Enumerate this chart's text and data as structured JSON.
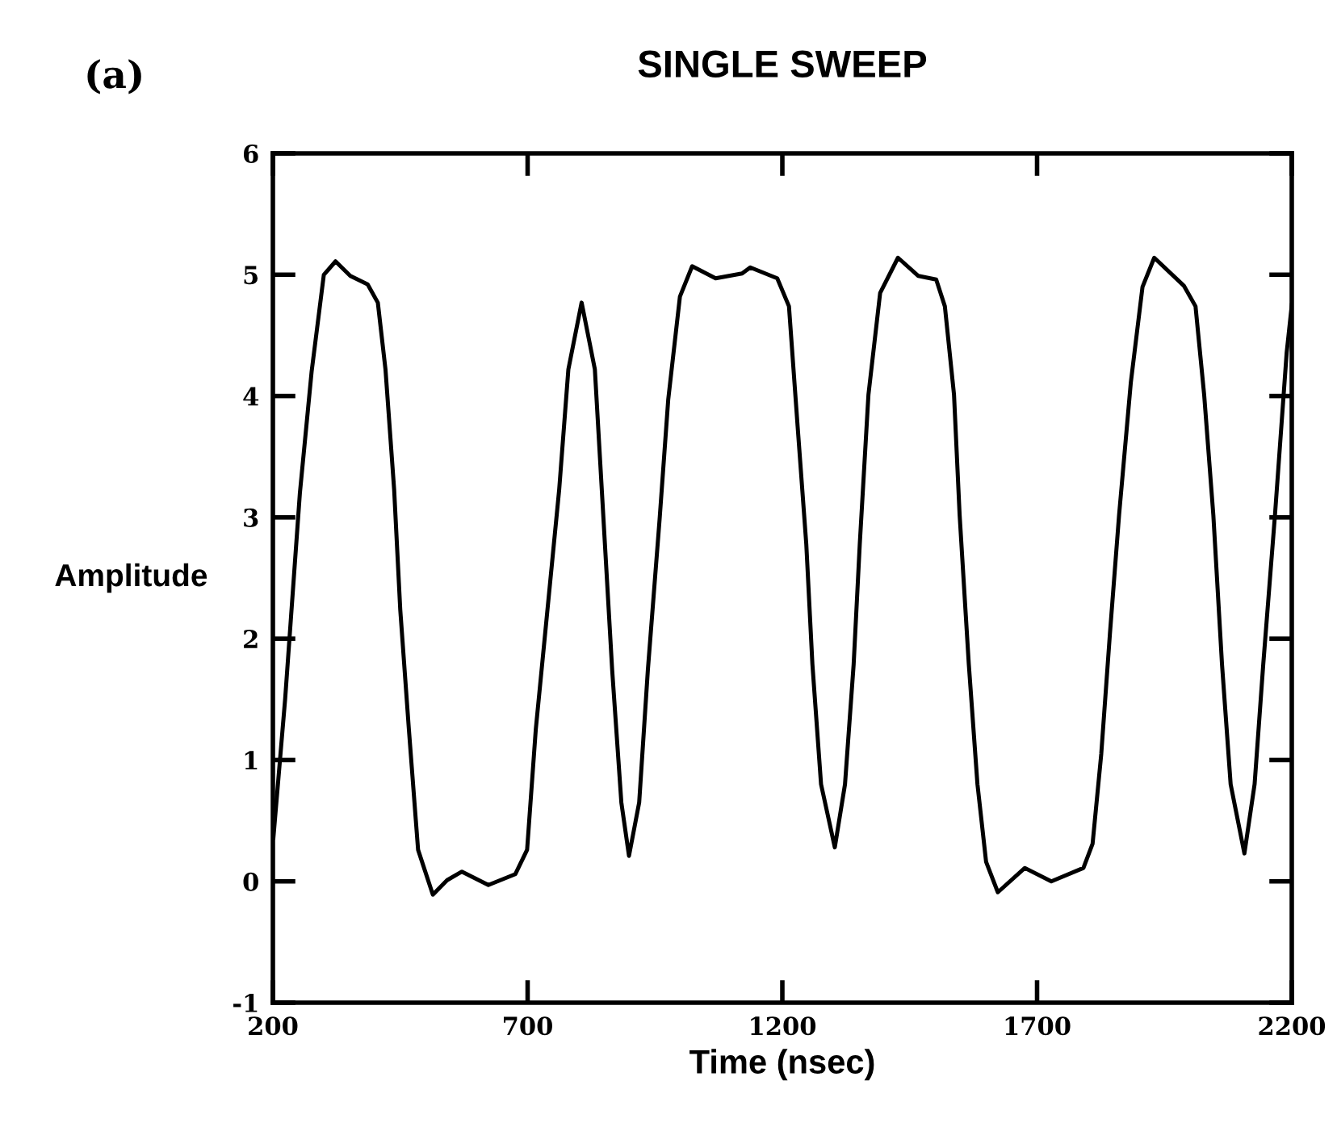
{
  "chart_data": {
    "type": "line",
    "title": "SINGLE SWEEP",
    "xlabel": "Time (nsec)",
    "ylabel": "Amplitude",
    "annotations": [
      "(a)"
    ],
    "xlim": [
      200,
      2200
    ],
    "xticks": [
      200,
      700,
      1200,
      1700,
      2200
    ],
    "ylim": [
      -1,
      6
    ],
    "yticks": [
      -1,
      0,
      1,
      2,
      3,
      4,
      5,
      6
    ],
    "grid": false,
    "legend": false,
    "marker": "none",
    "line_style": "solid",
    "series": [
      {
        "color": "#000000",
        "x": [
          201,
          224,
          253,
          276,
          300,
          323,
          352,
          386,
          406,
          421,
          438,
          450,
          467,
          485,
          514,
          542,
          571,
          623,
          676,
          699,
          716,
          739,
          762,
          780,
          806,
          832,
          849,
          866,
          884,
          899,
          919,
          936,
          959,
          976,
          999,
          1023,
          1069,
          1121,
          1137,
          1190,
          1213,
          1230,
          1247,
          1259,
          1276,
          1303,
          1323,
          1340,
          1352,
          1369,
          1392,
          1427,
          1467,
          1502,
          1519,
          1537,
          1548,
          1566,
          1583,
          1600,
          1623,
          1676,
          1728,
          1791,
          1809,
          1826,
          1843,
          1861,
          1884,
          1907,
          1930,
          1988,
          2011,
          2028,
          2046,
          2063,
          2080,
          2107,
          2127,
          2144,
          2167,
          2190,
          2200
        ],
        "values": [
          0.36,
          1.5,
          3.2,
          4.2,
          5.0,
          5.11,
          4.99,
          4.92,
          4.77,
          4.22,
          3.23,
          2.24,
          1.25,
          0.26,
          -0.11,
          0.01,
          0.08,
          -0.03,
          0.06,
          0.26,
          1.25,
          2.24,
          3.23,
          4.22,
          4.77,
          4.22,
          2.98,
          1.74,
          0.65,
          0.21,
          0.65,
          1.74,
          2.98,
          3.97,
          4.82,
          5.07,
          4.97,
          5.01,
          5.06,
          4.97,
          4.74,
          3.75,
          2.78,
          1.79,
          0.8,
          0.28,
          0.8,
          1.79,
          2.78,
          4.01,
          4.85,
          5.14,
          4.99,
          4.96,
          4.74,
          4.01,
          3.02,
          1.79,
          0.8,
          0.16,
          -0.09,
          0.11,
          0.0,
          0.11,
          0.31,
          1.05,
          2.04,
          3.02,
          4.11,
          4.9,
          5.14,
          4.91,
          4.74,
          4.01,
          3.02,
          1.79,
          0.8,
          0.23,
          0.8,
          1.79,
          3.02,
          4.36,
          4.75
        ]
      }
    ]
  }
}
